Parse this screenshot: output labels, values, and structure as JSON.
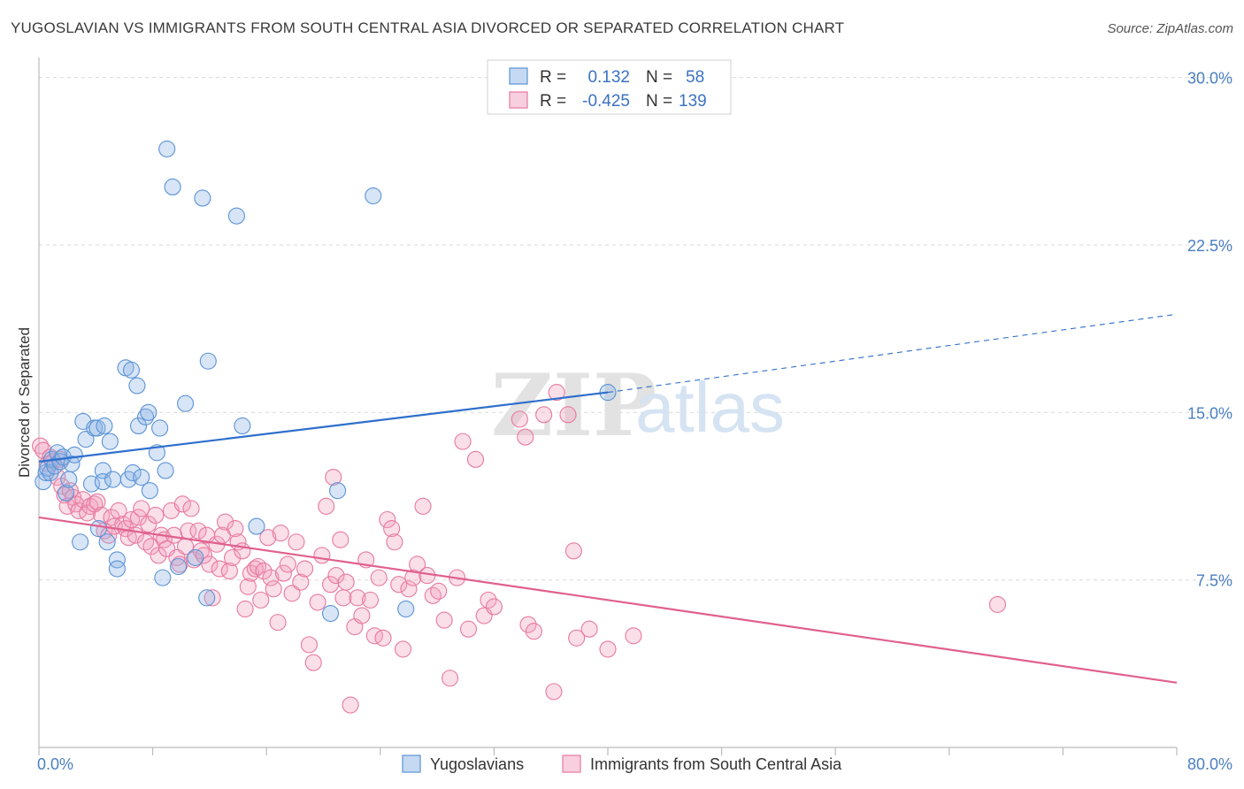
{
  "header": {
    "title": "YUGOSLAVIAN VS IMMIGRANTS FROM SOUTH CENTRAL ASIA DIVORCED OR SEPARATED CORRELATION CHART",
    "source": "Source: ZipAtlas.com"
  },
  "watermark": {
    "zip": "ZIP",
    "atlas": "atlas"
  },
  "legend": {
    "rows": [
      {
        "r_label": "R =",
        "r_value": "0.132",
        "n_label": "N =",
        "n_value": "58"
      },
      {
        "r_label": "R =",
        "r_value": "-0.425",
        "n_label": "N =",
        "n_value": "139"
      }
    ]
  },
  "bottom_legend": {
    "items": [
      {
        "label": "Yugoslavians"
      },
      {
        "label": "Immigrants from South Central Asia"
      }
    ]
  },
  "colors": {
    "blue": "#5b93d6",
    "blue_fill": "rgba(140,180,230,0.35)",
    "blue_line": "#2e6fcc",
    "pink": "#e8799f",
    "pink_fill": "rgba(240,160,190,0.35)",
    "pink_line": "#e0608e",
    "grid": "#d9d9d9"
  },
  "chart_data": {
    "type": "scatter",
    "title": "YUGOSLAVIAN VS IMMIGRANTS FROM SOUTH CENTRAL ASIA DIVORCED OR SEPARATED CORRELATION CHART",
    "xlabel": "",
    "ylabel": "Divorced or Separated",
    "xlim": [
      0,
      80
    ],
    "ylim": [
      0,
      30.5
    ],
    "x_tick_labels": [
      "0.0%",
      "80.0%"
    ],
    "y_tick_labels": [
      "7.5%",
      "15.0%",
      "22.5%",
      "30.0%"
    ],
    "y_ticks": [
      7.5,
      15.0,
      22.5,
      30.0
    ],
    "legend_position": "top-center",
    "grid": true,
    "series": [
      {
        "name": "Yugoslavians",
        "color": "#5b93d6",
        "points": [
          [
            0.3,
            11.9
          ],
          [
            0.5,
            12.3
          ],
          [
            0.6,
            12.5
          ],
          [
            0.8,
            12.3
          ],
          [
            0.9,
            12.9
          ],
          [
            1.1,
            12.6
          ],
          [
            1.3,
            13.2
          ],
          [
            1.5,
            12.8
          ],
          [
            1.7,
            13.0
          ],
          [
            1.9,
            11.4
          ],
          [
            2.1,
            12.0
          ],
          [
            2.3,
            12.7
          ],
          [
            2.5,
            13.1
          ],
          [
            2.9,
            9.2
          ],
          [
            3.1,
            14.6
          ],
          [
            3.3,
            13.8
          ],
          [
            3.7,
            11.8
          ],
          [
            3.9,
            14.3
          ],
          [
            4.1,
            14.3
          ],
          [
            4.2,
            9.8
          ],
          [
            4.5,
            12.4
          ],
          [
            4.5,
            11.9
          ],
          [
            4.6,
            14.4
          ],
          [
            4.8,
            9.2
          ],
          [
            5.0,
            13.7
          ],
          [
            5.2,
            12.0
          ],
          [
            5.5,
            8.4
          ],
          [
            5.5,
            8.0
          ],
          [
            6.1,
            17.0
          ],
          [
            6.3,
            12.0
          ],
          [
            6.5,
            16.9
          ],
          [
            6.6,
            12.3
          ],
          [
            6.9,
            16.2
          ],
          [
            7.0,
            14.4
          ],
          [
            7.2,
            12.1
          ],
          [
            7.5,
            14.8
          ],
          [
            7.7,
            15.0
          ],
          [
            7.8,
            11.5
          ],
          [
            8.3,
            13.2
          ],
          [
            8.5,
            14.3
          ],
          [
            8.7,
            7.6
          ],
          [
            8.9,
            12.4
          ],
          [
            9.0,
            26.8
          ],
          [
            9.4,
            25.1
          ],
          [
            9.8,
            8.1
          ],
          [
            10.3,
            15.4
          ],
          [
            11.0,
            8.5
          ],
          [
            11.5,
            24.6
          ],
          [
            11.8,
            6.7
          ],
          [
            11.9,
            17.3
          ],
          [
            13.9,
            23.8
          ],
          [
            14.3,
            14.4
          ],
          [
            15.3,
            9.9
          ],
          [
            20.5,
            6.0
          ],
          [
            21.0,
            11.5
          ],
          [
            23.5,
            24.7
          ],
          [
            25.8,
            6.2
          ],
          [
            40.0,
            15.9
          ]
        ]
      },
      {
        "name": "Immigrants from South Central Asia",
        "color": "#e8799f",
        "points": [
          [
            0.1,
            13.5
          ],
          [
            0.3,
            13.3
          ],
          [
            0.6,
            12.7
          ],
          [
            0.8,
            13.0
          ],
          [
            1.0,
            12.8
          ],
          [
            1.3,
            12.1
          ],
          [
            1.5,
            12.9
          ],
          [
            1.6,
            11.7
          ],
          [
            1.8,
            11.3
          ],
          [
            2.0,
            10.8
          ],
          [
            2.2,
            11.5
          ],
          [
            2.4,
            11.2
          ],
          [
            2.6,
            10.9
          ],
          [
            2.8,
            10.6
          ],
          [
            3.1,
            11.1
          ],
          [
            3.4,
            10.5
          ],
          [
            3.6,
            10.8
          ],
          [
            3.9,
            10.9
          ],
          [
            4.1,
            11.0
          ],
          [
            4.4,
            10.4
          ],
          [
            4.6,
            9.7
          ],
          [
            4.9,
            9.5
          ],
          [
            5.1,
            10.3
          ],
          [
            5.3,
            9.9
          ],
          [
            5.6,
            10.6
          ],
          [
            5.9,
            10.0
          ],
          [
            6.1,
            9.8
          ],
          [
            6.3,
            9.4
          ],
          [
            6.5,
            10.2
          ],
          [
            6.8,
            9.5
          ],
          [
            7.0,
            10.3
          ],
          [
            7.2,
            10.7
          ],
          [
            7.5,
            9.2
          ],
          [
            7.7,
            10.0
          ],
          [
            7.9,
            9.0
          ],
          [
            8.2,
            10.4
          ],
          [
            8.4,
            8.6
          ],
          [
            8.6,
            9.5
          ],
          [
            8.8,
            9.3
          ],
          [
            9.0,
            8.9
          ],
          [
            9.3,
            10.6
          ],
          [
            9.5,
            9.5
          ],
          [
            9.7,
            8.5
          ],
          [
            9.9,
            8.2
          ],
          [
            10.1,
            10.9
          ],
          [
            10.3,
            9.0
          ],
          [
            10.5,
            9.7
          ],
          [
            10.7,
            10.7
          ],
          [
            10.9,
            8.4
          ],
          [
            11.2,
            9.7
          ],
          [
            11.4,
            8.8
          ],
          [
            11.6,
            8.6
          ],
          [
            11.8,
            9.5
          ],
          [
            12.0,
            8.2
          ],
          [
            12.2,
            6.7
          ],
          [
            12.5,
            9.1
          ],
          [
            12.7,
            8.0
          ],
          [
            12.9,
            9.5
          ],
          [
            13.1,
            10.1
          ],
          [
            13.4,
            7.9
          ],
          [
            13.6,
            8.5
          ],
          [
            13.8,
            9.8
          ],
          [
            14.0,
            9.2
          ],
          [
            14.3,
            8.8
          ],
          [
            14.5,
            6.2
          ],
          [
            14.7,
            7.2
          ],
          [
            14.9,
            7.8
          ],
          [
            15.2,
            8.0
          ],
          [
            15.4,
            8.1
          ],
          [
            15.6,
            6.6
          ],
          [
            15.8,
            7.9
          ],
          [
            16.1,
            9.4
          ],
          [
            16.3,
            7.6
          ],
          [
            16.5,
            7.1
          ],
          [
            16.8,
            5.6
          ],
          [
            17.0,
            9.6
          ],
          [
            17.2,
            7.8
          ],
          [
            17.5,
            8.2
          ],
          [
            17.8,
            6.9
          ],
          [
            18.1,
            9.2
          ],
          [
            18.4,
            7.4
          ],
          [
            18.7,
            8.0
          ],
          [
            19.0,
            4.6
          ],
          [
            19.3,
            3.8
          ],
          [
            19.6,
            6.5
          ],
          [
            19.9,
            8.6
          ],
          [
            20.2,
            10.8
          ],
          [
            20.5,
            7.3
          ],
          [
            20.7,
            12.1
          ],
          [
            20.9,
            7.7
          ],
          [
            21.2,
            9.3
          ],
          [
            21.4,
            6.7
          ],
          [
            21.6,
            7.4
          ],
          [
            21.9,
            1.9
          ],
          [
            22.2,
            5.4
          ],
          [
            22.4,
            6.7
          ],
          [
            22.7,
            5.9
          ],
          [
            23.0,
            8.4
          ],
          [
            23.3,
            6.6
          ],
          [
            23.6,
            5.0
          ],
          [
            23.9,
            7.6
          ],
          [
            24.2,
            4.9
          ],
          [
            24.5,
            10.2
          ],
          [
            24.8,
            9.8
          ],
          [
            25.0,
            9.2
          ],
          [
            25.3,
            7.3
          ],
          [
            25.6,
            4.4
          ],
          [
            26.0,
            7.1
          ],
          [
            26.3,
            7.6
          ],
          [
            26.6,
            8.2
          ],
          [
            27.0,
            10.8
          ],
          [
            27.3,
            7.7
          ],
          [
            27.7,
            6.8
          ],
          [
            28.1,
            7.0
          ],
          [
            28.5,
            5.7
          ],
          [
            28.9,
            3.1
          ],
          [
            29.4,
            7.6
          ],
          [
            29.8,
            13.7
          ],
          [
            30.2,
            5.3
          ],
          [
            30.7,
            12.9
          ],
          [
            31.3,
            5.9
          ],
          [
            31.6,
            6.6
          ],
          [
            32.0,
            6.3
          ],
          [
            33.8,
            14.7
          ],
          [
            34.2,
            13.9
          ],
          [
            34.4,
            5.5
          ],
          [
            34.8,
            5.2
          ],
          [
            35.5,
            14.9
          ],
          [
            36.2,
            2.5
          ],
          [
            36.4,
            15.9
          ],
          [
            37.2,
            14.9
          ],
          [
            37.6,
            8.8
          ],
          [
            37.8,
            4.9
          ],
          [
            38.7,
            5.3
          ],
          [
            40.0,
            4.4
          ],
          [
            41.8,
            5.0
          ],
          [
            67.4,
            6.4
          ]
        ]
      }
    ],
    "trend_lines": [
      {
        "series": "Yugoslavians",
        "x": [
          0,
          40
        ],
        "y": [
          12.8,
          15.9
        ],
        "extended_dashed_to": [
          80,
          19.4
        ]
      },
      {
        "series": "Immigrants from South Central Asia",
        "x": [
          0,
          80
        ],
        "y": [
          10.3,
          2.9
        ]
      }
    ]
  }
}
